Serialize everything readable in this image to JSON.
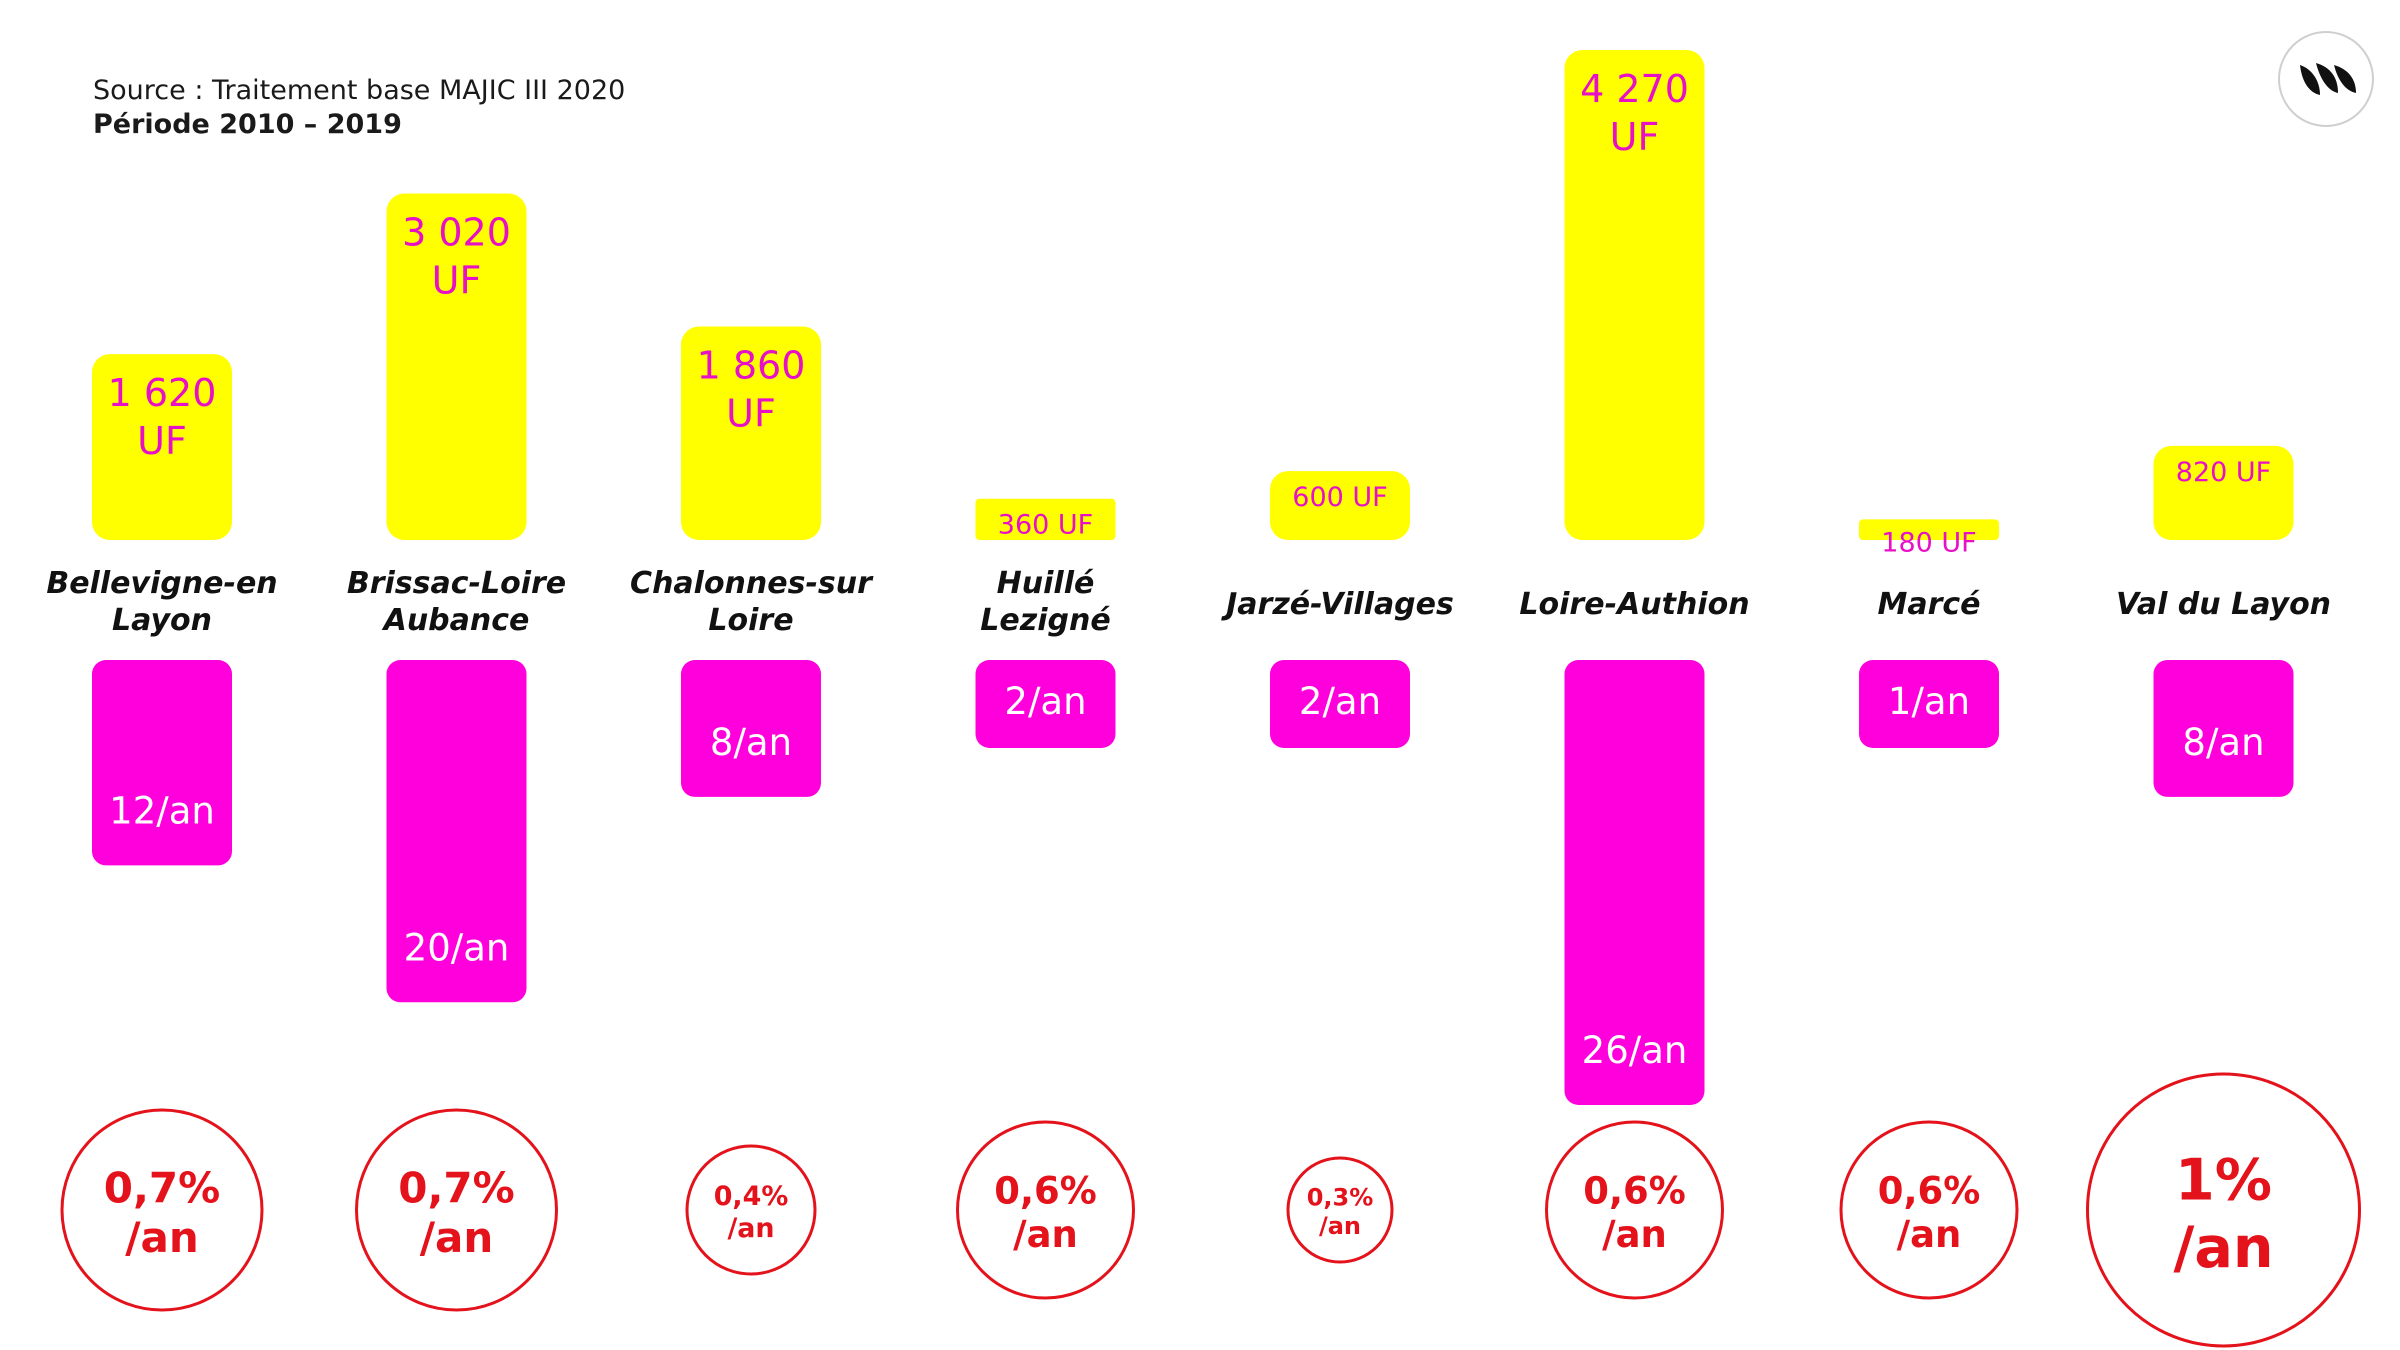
{
  "header": {
    "source": "Source : Traitement base MAJIC III 2020",
    "period": "Période 2010 – 2019"
  },
  "logo": {
    "icon": "brand-logo-icon"
  },
  "colors": {
    "yellow_bar": "#ffff00",
    "magenta_bar": "#ff00dc",
    "yellow_label": "#e80fc8",
    "circle": "#e4121b"
  },
  "chart_data": {
    "type": "bar",
    "categories": [
      "Bellevigne-en Layon",
      "Brissac-Loire Aubance",
      "Chalonnes-sur Loire",
      "Huillé Lezigné",
      "Jarzé-Villages",
      "Loire-Authion",
      "Marcé",
      "Val du Layon"
    ],
    "category_lines": [
      [
        "Bellevigne-en",
        "Layon"
      ],
      [
        "Brissac-Loire",
        "Aubance"
      ],
      [
        "Chalonnes-sur",
        "Loire"
      ],
      [
        "Huillé",
        "Lezigné"
      ],
      [
        "Jarzé-Villages"
      ],
      [
        "Loire-Authion"
      ],
      [
        "Marcé"
      ],
      [
        "Val du Layon"
      ]
    ],
    "series": [
      {
        "values": [
          1620,
          3020,
          1860,
          360,
          600,
          4270,
          180,
          820
        ],
        "labels": [
          [
            "1 620",
            "UF"
          ],
          [
            "3 020",
            "UF"
          ],
          [
            "1 860",
            "UF"
          ],
          [
            "360 UF"
          ],
          [
            "600 UF"
          ],
          [
            "4 270",
            "UF"
          ],
          [
            "180 UF"
          ],
          [
            "820 UF"
          ]
        ]
      },
      {
        "values": [
          12,
          20,
          8,
          2,
          2,
          26,
          1,
          8
        ],
        "labels": [
          "12/an",
          "20/an",
          "8/an",
          "2/an",
          "2/an",
          "26/an",
          "1/an",
          "8/an"
        ]
      },
      {
        "values": [
          0.7,
          0.7,
          0.4,
          0.6,
          0.3,
          0.6,
          0.6,
          1
        ],
        "labels": [
          [
            "0,7%",
            "/an"
          ],
          [
            "0,7%",
            "/an"
          ],
          [
            "0,4%",
            "/an"
          ],
          [
            "0,6%",
            "/an"
          ],
          [
            "0,3%",
            "/an"
          ],
          [
            "0,6%",
            "/an"
          ],
          [
            "0,6%",
            "/an"
          ],
          [
            "1%",
            "/an"
          ]
        ]
      }
    ]
  }
}
